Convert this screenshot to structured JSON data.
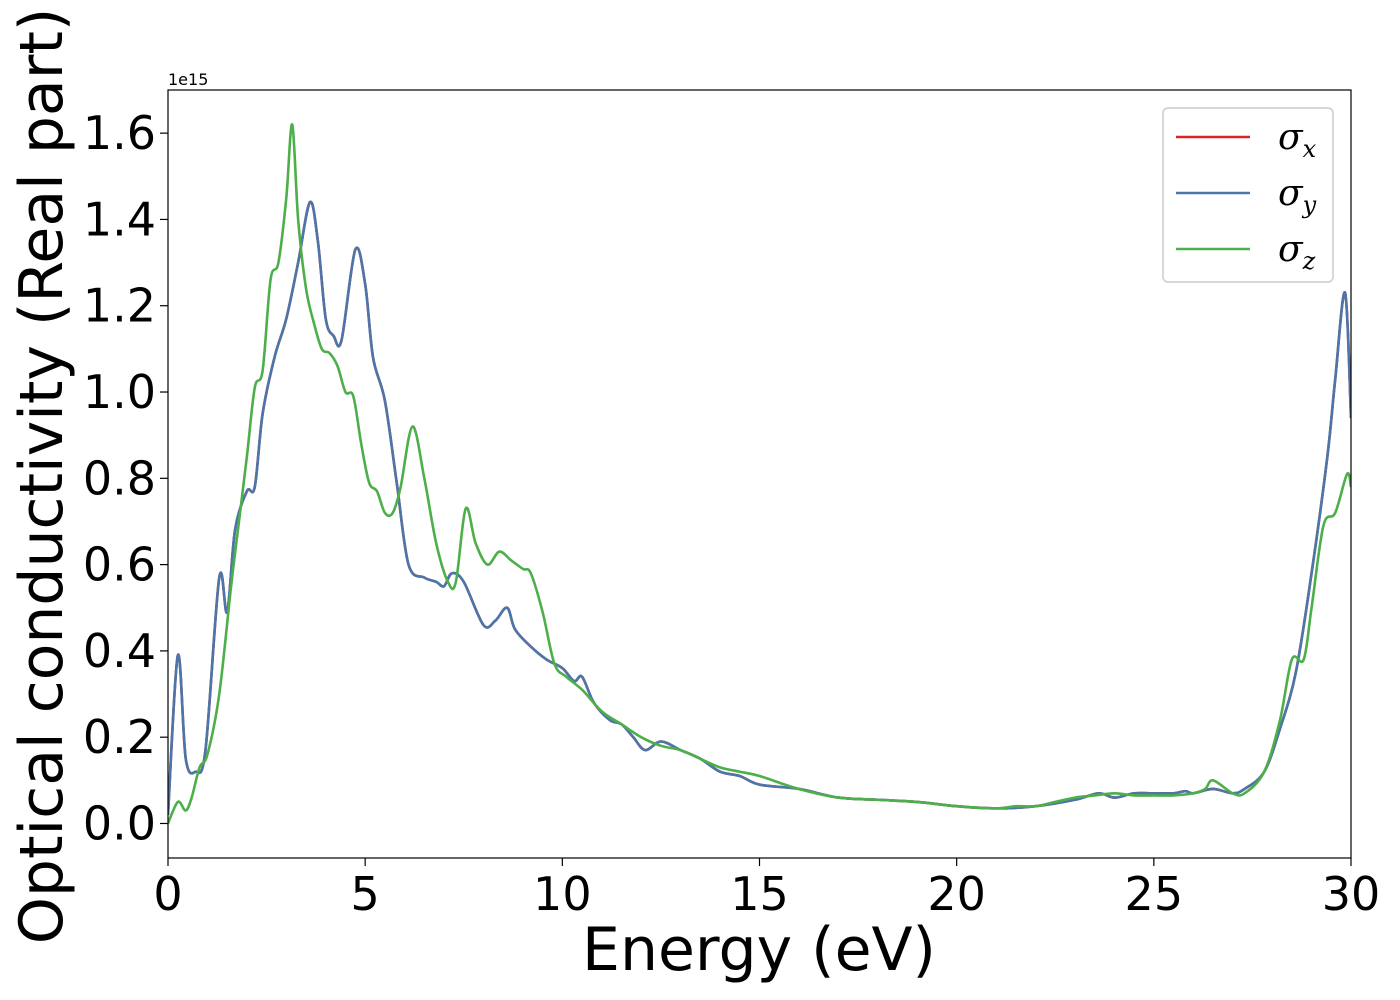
{
  "chart_data": {
    "type": "line",
    "xlabel": "Energy (eV)",
    "ylabel": "Optical conductivity (Real part)",
    "y_offset_label": "1e15",
    "xlim": [
      0,
      30
    ],
    "ylim": [
      -0.08,
      1.7
    ],
    "x_ticks": [
      0,
      5,
      10,
      15,
      20,
      25,
      30
    ],
    "x_tick_labels": [
      "0",
      "5",
      "10",
      "15",
      "20",
      "25",
      "30"
    ],
    "y_ticks": [
      0.0,
      0.2,
      0.4,
      0.6,
      0.8,
      1.0,
      1.2,
      1.4,
      1.6
    ],
    "y_tick_labels": [
      "0.0",
      "0.2",
      "0.4",
      "0.6",
      "0.8",
      "1.0",
      "1.2",
      "1.4",
      "1.6"
    ],
    "grid": false,
    "legend_position": "top-right",
    "series": [
      {
        "name": "σx",
        "symbol": "σ",
        "subscript": "x",
        "color": "#d62728",
        "x": [
          0,
          0.25,
          0.45,
          0.7,
          0.95,
          1.3,
          1.5,
          1.7,
          2.0,
          2.2,
          2.4,
          2.7,
          3.0,
          3.3,
          3.6,
          3.8,
          4.0,
          4.2,
          4.4,
          4.75,
          5.0,
          5.2,
          5.5,
          5.8,
          6.1,
          6.5,
          6.8,
          7.0,
          7.2,
          7.5,
          8.0,
          8.3,
          8.6,
          8.8,
          9.2,
          9.6,
          10.0,
          10.3,
          10.5,
          10.8,
          11.2,
          11.5,
          11.8,
          12.1,
          12.5,
          13.0,
          13.5,
          14.0,
          14.5,
          15.0,
          16.0,
          17.0,
          18.0,
          19.0,
          20.0,
          21.0,
          22.0,
          23.0,
          23.6,
          24.0,
          24.5,
          25.0,
          25.5,
          25.8,
          26.0,
          26.5,
          27.0,
          27.3,
          27.8,
          28.2,
          28.6,
          29.0,
          29.4,
          29.6,
          29.85,
          30.0
        ],
        "y": [
          0.02,
          0.39,
          0.15,
          0.12,
          0.17,
          0.57,
          0.49,
          0.68,
          0.77,
          0.78,
          0.95,
          1.08,
          1.17,
          1.3,
          1.44,
          1.35,
          1.17,
          1.13,
          1.12,
          1.33,
          1.25,
          1.08,
          0.98,
          0.79,
          0.6,
          0.57,
          0.56,
          0.55,
          0.58,
          0.56,
          0.46,
          0.47,
          0.5,
          0.45,
          0.41,
          0.38,
          0.36,
          0.33,
          0.34,
          0.28,
          0.24,
          0.23,
          0.2,
          0.17,
          0.19,
          0.17,
          0.15,
          0.12,
          0.11,
          0.09,
          0.08,
          0.06,
          0.055,
          0.05,
          0.04,
          0.035,
          0.04,
          0.055,
          0.07,
          0.06,
          0.07,
          0.07,
          0.07,
          0.075,
          0.07,
          0.08,
          0.07,
          0.08,
          0.12,
          0.22,
          0.35,
          0.58,
          0.85,
          1.03,
          1.23,
          0.94
        ]
      },
      {
        "name": "σy",
        "symbol": "σ",
        "subscript": "y",
        "color": "#4a76aa",
        "x": [
          0,
          0.25,
          0.45,
          0.7,
          0.95,
          1.3,
          1.5,
          1.7,
          2.0,
          2.2,
          2.4,
          2.7,
          3.0,
          3.3,
          3.6,
          3.8,
          4.0,
          4.2,
          4.4,
          4.75,
          5.0,
          5.2,
          5.5,
          5.8,
          6.1,
          6.5,
          6.8,
          7.0,
          7.2,
          7.5,
          8.0,
          8.3,
          8.6,
          8.8,
          9.2,
          9.6,
          10.0,
          10.3,
          10.5,
          10.8,
          11.2,
          11.5,
          11.8,
          12.1,
          12.5,
          13.0,
          13.5,
          14.0,
          14.5,
          15.0,
          16.0,
          17.0,
          18.0,
          19.0,
          20.0,
          21.0,
          22.0,
          23.0,
          23.6,
          24.0,
          24.5,
          25.0,
          25.5,
          25.8,
          26.0,
          26.5,
          27.0,
          27.3,
          27.8,
          28.2,
          28.6,
          29.0,
          29.4,
          29.6,
          29.85,
          30.0
        ],
        "y": [
          0.02,
          0.39,
          0.15,
          0.12,
          0.17,
          0.57,
          0.49,
          0.68,
          0.77,
          0.78,
          0.95,
          1.08,
          1.17,
          1.3,
          1.44,
          1.35,
          1.17,
          1.13,
          1.12,
          1.33,
          1.25,
          1.08,
          0.98,
          0.79,
          0.6,
          0.57,
          0.56,
          0.55,
          0.58,
          0.56,
          0.46,
          0.47,
          0.5,
          0.45,
          0.41,
          0.38,
          0.36,
          0.33,
          0.34,
          0.28,
          0.24,
          0.23,
          0.2,
          0.17,
          0.19,
          0.17,
          0.15,
          0.12,
          0.11,
          0.09,
          0.08,
          0.06,
          0.055,
          0.05,
          0.04,
          0.035,
          0.04,
          0.055,
          0.07,
          0.06,
          0.07,
          0.07,
          0.07,
          0.075,
          0.07,
          0.08,
          0.07,
          0.08,
          0.12,
          0.22,
          0.35,
          0.58,
          0.85,
          1.03,
          1.23,
          0.94
        ]
      },
      {
        "name": "σz",
        "symbol": "σ",
        "subscript": "z",
        "color": "#4daf4a",
        "x": [
          0,
          0.25,
          0.45,
          0.6,
          0.8,
          1.0,
          1.3,
          1.6,
          1.8,
          2.0,
          2.2,
          2.4,
          2.6,
          2.8,
          3.0,
          3.15,
          3.3,
          3.5,
          3.7,
          3.9,
          4.1,
          4.3,
          4.5,
          4.7,
          4.9,
          5.1,
          5.3,
          5.5,
          5.7,
          5.9,
          6.2,
          6.5,
          6.8,
          7.1,
          7.3,
          7.55,
          7.8,
          8.1,
          8.4,
          8.7,
          9.0,
          9.2,
          9.5,
          9.8,
          10.1,
          10.5,
          11.0,
          11.5,
          12.0,
          12.5,
          13.0,
          13.5,
          14.0,
          14.5,
          15.0,
          16.0,
          17.0,
          18.0,
          19.0,
          20.0,
          21.0,
          21.5,
          22.0,
          22.5,
          23.0,
          23.5,
          24.0,
          24.5,
          25.0,
          25.5,
          26.0,
          26.3,
          26.5,
          27.0,
          27.3,
          27.8,
          28.2,
          28.5,
          28.8,
          29.0,
          29.3,
          29.6,
          29.9,
          30.0
        ],
        "y": [
          0.0,
          0.05,
          0.03,
          0.06,
          0.13,
          0.16,
          0.3,
          0.55,
          0.7,
          0.85,
          1.01,
          1.05,
          1.26,
          1.3,
          1.45,
          1.62,
          1.4,
          1.24,
          1.16,
          1.1,
          1.09,
          1.06,
          1.0,
          0.99,
          0.88,
          0.79,
          0.77,
          0.72,
          0.72,
          0.78,
          0.92,
          0.8,
          0.65,
          0.56,
          0.56,
          0.73,
          0.65,
          0.6,
          0.63,
          0.61,
          0.59,
          0.58,
          0.49,
          0.37,
          0.34,
          0.31,
          0.26,
          0.23,
          0.2,
          0.18,
          0.17,
          0.15,
          0.13,
          0.12,
          0.11,
          0.08,
          0.06,
          0.055,
          0.05,
          0.04,
          0.035,
          0.04,
          0.04,
          0.05,
          0.06,
          0.065,
          0.07,
          0.065,
          0.065,
          0.065,
          0.07,
          0.08,
          0.1,
          0.07,
          0.07,
          0.12,
          0.24,
          0.38,
          0.38,
          0.5,
          0.69,
          0.72,
          0.81,
          0.78
        ]
      }
    ]
  }
}
